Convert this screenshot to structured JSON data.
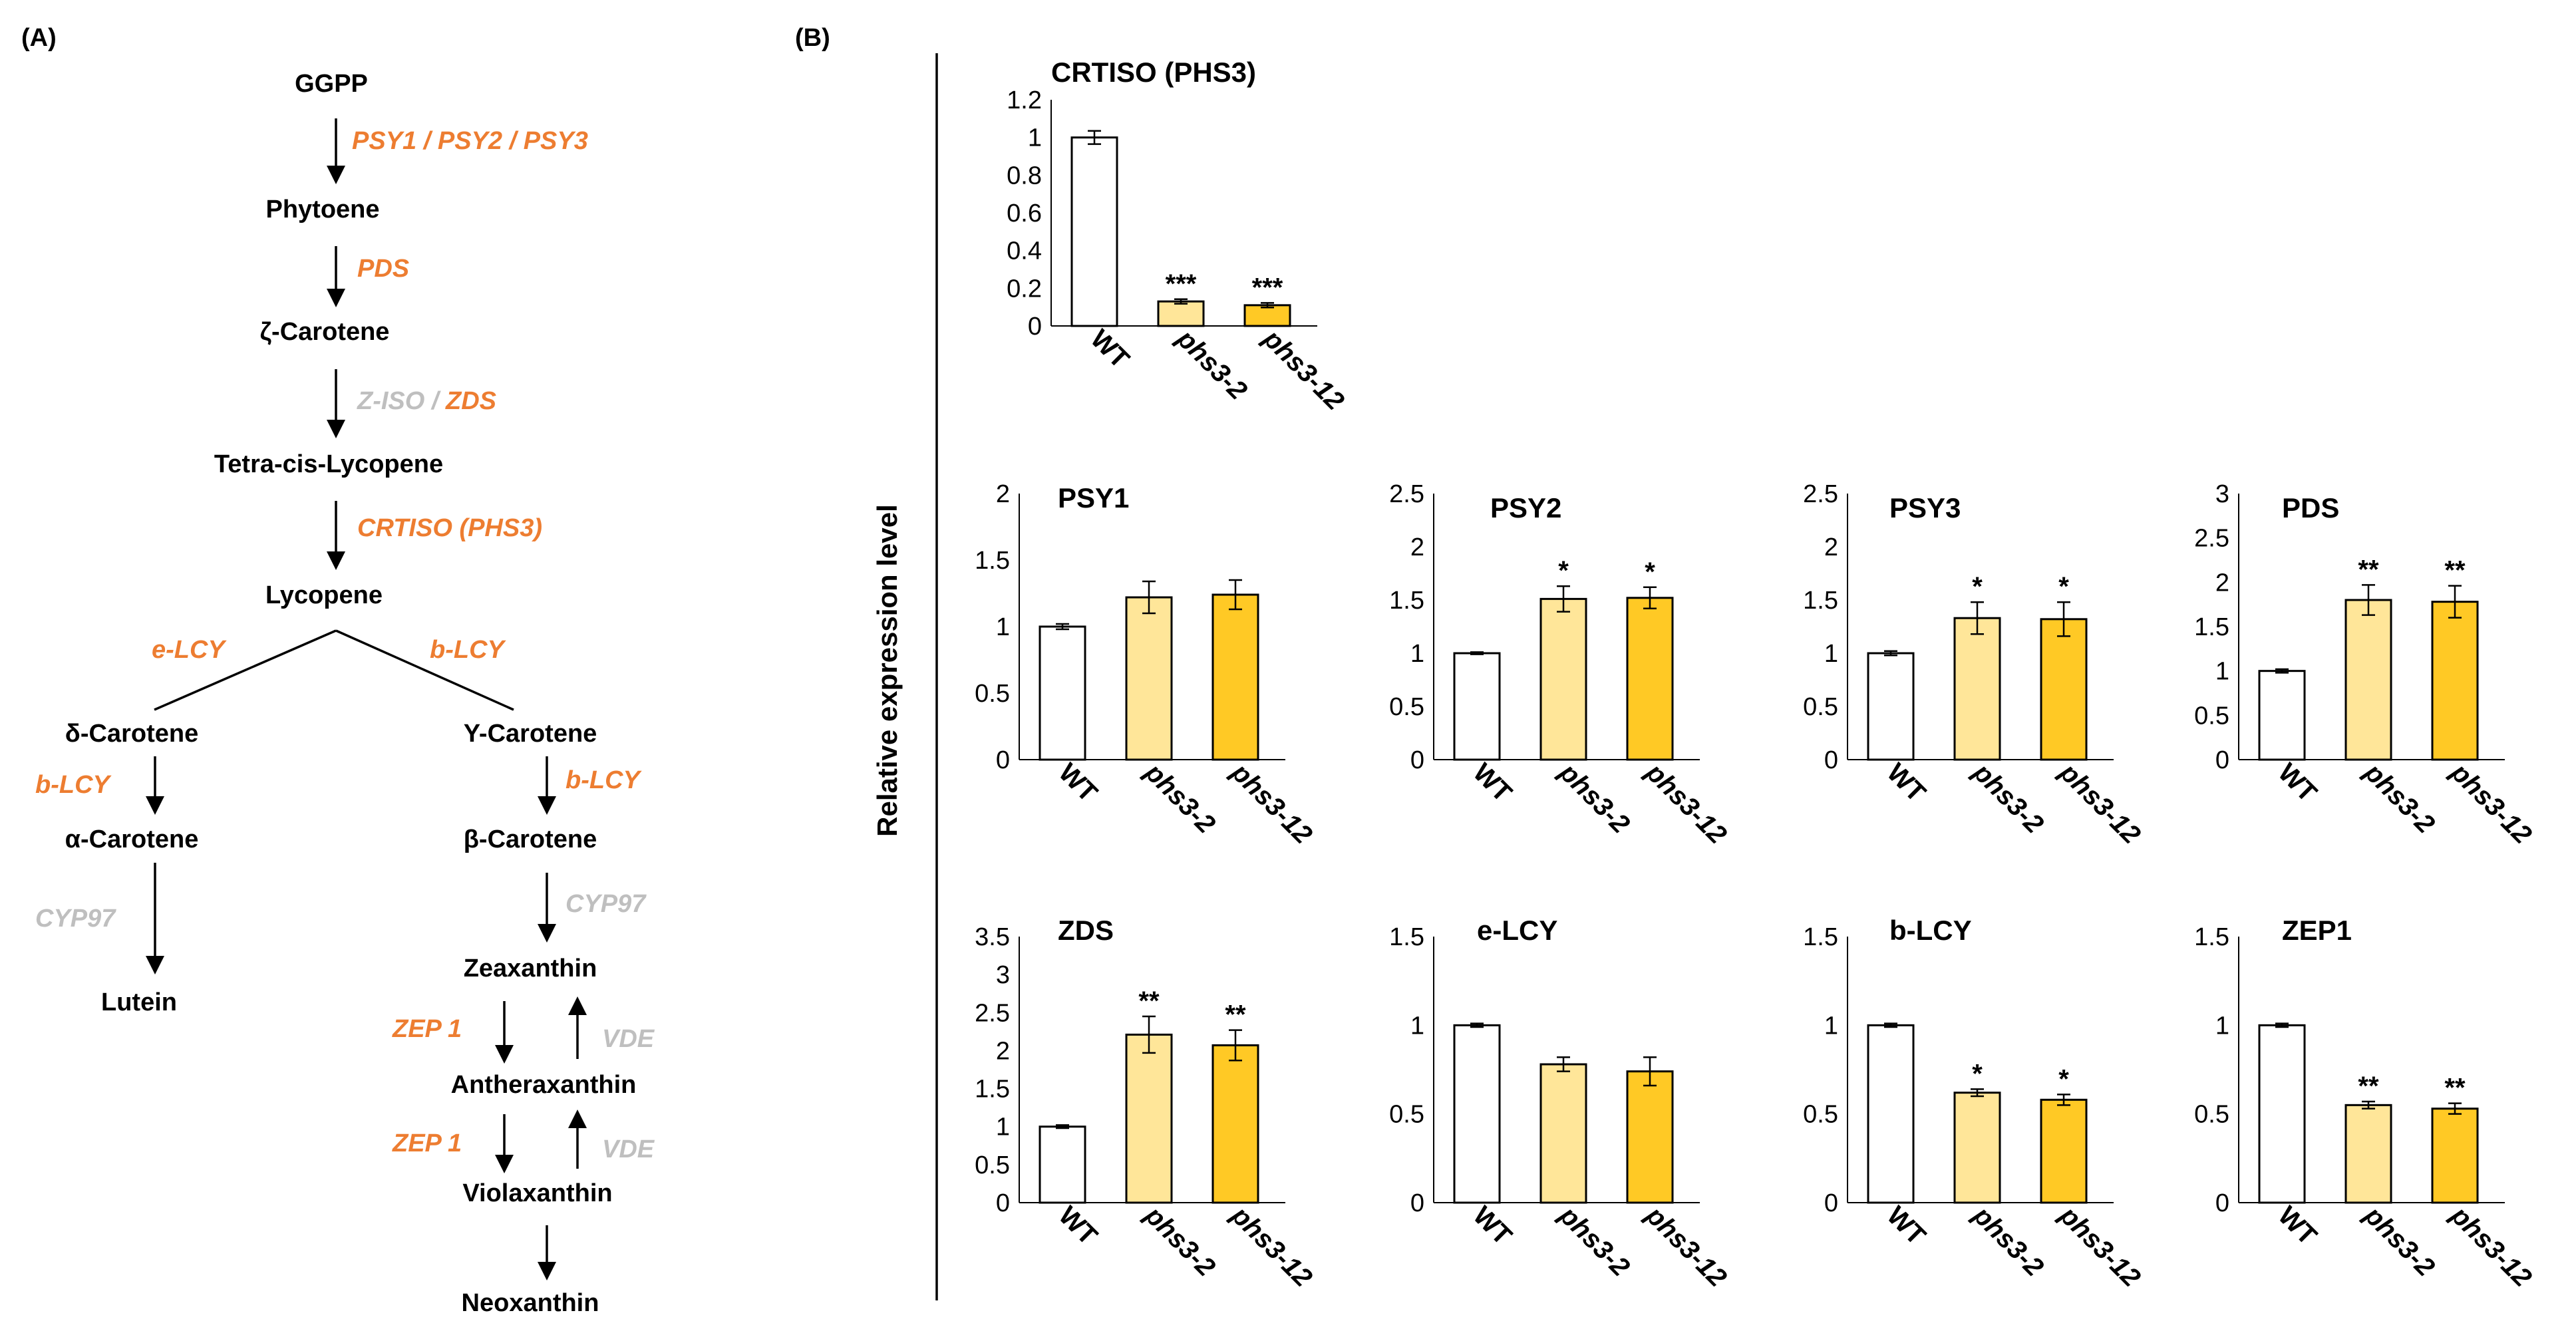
{
  "panel_a": {
    "label": "(A)",
    "metabolites": {
      "ggpp": "GGPP",
      "phytoene": "Phytoene",
      "zeta_carotene": "ζ-Carotene",
      "tetra_cis_lycopene": "Tetra-cis-Lycopene",
      "lycopene": "Lycopene",
      "delta_carotene": "δ-Carotene",
      "gamma_carotene": "Y-Carotene",
      "alpha_carotene": "α-Carotene",
      "beta_carotene": "β-Carotene",
      "lutein": "Lutein",
      "zeaxanthin": "Zeaxanthin",
      "antheraxanthin": "Antheraxanthin",
      "violaxanthin": "Violaxanthin",
      "neoxanthin": "Neoxanthin"
    },
    "enzymes": {
      "psy": "PSY1 / PSY2 / PSY3",
      "pds": "PDS",
      "ziso": "Z-ISO",
      "ziso_sep": " / ",
      "zds": "ZDS",
      "crtiso": "CRTISO (PHS3)",
      "elcy": "e-LCY",
      "blcy_branch": "b-LCY",
      "blcy_left": "b-LCY",
      "blcy_right": "b-LCY",
      "cyp97_left": "CYP97",
      "cyp97_right": "CYP97",
      "zep1_a": "ZEP 1",
      "zep1_b": "ZEP 1",
      "vde_a": "VDE",
      "vde_b": "VDE"
    },
    "colors": {
      "orange": "#ed7d31",
      "grey": "#bfbfbf",
      "black": "#000000"
    }
  },
  "panel_b": {
    "label": "(B)",
    "y_axis_label": "Relative expression level"
  },
  "chart_data": [
    {
      "type": "bar",
      "title": "CRTISO (PHS3)",
      "categories": [
        "WT",
        "phs3-2",
        "phs3-12"
      ],
      "values": [
        1.0,
        0.13,
        0.11
      ],
      "errors": [
        0.035,
        0.012,
        0.012
      ],
      "significance": [
        "",
        "***",
        "***"
      ],
      "yticks": [
        "0",
        "0.2",
        "0.4",
        "0.6",
        "0.8",
        "1",
        "1.2"
      ],
      "ylim": [
        0,
        1.2
      ],
      "ylabel": "Relative expression level"
    },
    {
      "type": "bar",
      "title": "PSY1",
      "categories": [
        "WT",
        "phs3-2",
        "phs3-12"
      ],
      "values": [
        1.0,
        1.22,
        1.24
      ],
      "errors": [
        0.02,
        0.12,
        0.11
      ],
      "significance": [
        "",
        "",
        ""
      ],
      "yticks": [
        "0",
        "0.5",
        "1",
        "1.5",
        "2"
      ],
      "ylim": [
        0,
        2
      ],
      "ylabel": "Relative expression level"
    },
    {
      "type": "bar",
      "title": "PSY2",
      "categories": [
        "WT",
        "phs3-2",
        "phs3-12"
      ],
      "values": [
        1.0,
        1.51,
        1.52
      ],
      "errors": [
        0.01,
        0.12,
        0.1
      ],
      "significance": [
        "",
        "*",
        "*"
      ],
      "yticks": [
        "0",
        "0.5",
        "1",
        "1.5",
        "2",
        "2.5"
      ],
      "ylim": [
        0,
        2.5
      ],
      "ylabel": "Relative expression level"
    },
    {
      "type": "bar",
      "title": "PSY3",
      "categories": [
        "WT",
        "phs3-2",
        "phs3-12"
      ],
      "values": [
        1.0,
        1.33,
        1.32
      ],
      "errors": [
        0.02,
        0.15,
        0.16
      ],
      "significance": [
        "",
        "*",
        "*"
      ],
      "yticks": [
        "0",
        "0.5",
        "1",
        "1.5",
        "2",
        "2.5"
      ],
      "ylim": [
        0,
        2.5
      ],
      "ylabel": "Relative expression level"
    },
    {
      "type": "bar",
      "title": "PDS",
      "categories": [
        "WT",
        "phs3-2",
        "phs3-12"
      ],
      "values": [
        1.0,
        1.8,
        1.78
      ],
      "errors": [
        0.02,
        0.17,
        0.18
      ],
      "significance": [
        "",
        "**",
        "**"
      ],
      "yticks": [
        "0",
        "0.5",
        "1",
        "1.5",
        "2",
        "2.5",
        "3"
      ],
      "ylim": [
        0,
        3
      ],
      "ylabel": "Relative expression level"
    },
    {
      "type": "bar",
      "title": "ZDS",
      "categories": [
        "WT",
        "phs3-2",
        "phs3-12"
      ],
      "values": [
        1.0,
        2.21,
        2.07
      ],
      "errors": [
        0.02,
        0.24,
        0.2
      ],
      "significance": [
        "",
        "**",
        "**"
      ],
      "yticks": [
        "0",
        "0.5",
        "1",
        "1.5",
        "2",
        "2.5",
        "3",
        "3.5"
      ],
      "ylim": [
        0,
        3.5
      ],
      "ylabel": "Relative expression level"
    },
    {
      "type": "bar",
      "title": "e-LCY",
      "categories": [
        "WT",
        "phs3-2",
        "phs3-12"
      ],
      "values": [
        1.0,
        0.78,
        0.74
      ],
      "errors": [
        0.01,
        0.04,
        0.08
      ],
      "significance": [
        "",
        "",
        ""
      ],
      "yticks": [
        "0",
        "0.5",
        "1",
        "1.5"
      ],
      "ylim": [
        0,
        1.5
      ],
      "ylabel": "Relative expression level"
    },
    {
      "type": "bar",
      "title": "b-LCY",
      "categories": [
        "WT",
        "phs3-2",
        "phs3-12"
      ],
      "values": [
        1.0,
        0.62,
        0.58
      ],
      "errors": [
        0.01,
        0.02,
        0.03
      ],
      "significance": [
        "",
        "*",
        "*"
      ],
      "yticks": [
        "0",
        "0.5",
        "1",
        "1.5"
      ],
      "ylim": [
        0,
        1.5
      ],
      "ylabel": "Relative expression level"
    },
    {
      "type": "bar",
      "title": "ZEP1",
      "categories": [
        "WT",
        "phs3-2",
        "phs3-12"
      ],
      "values": [
        1.0,
        0.55,
        0.53
      ],
      "errors": [
        0.01,
        0.02,
        0.03
      ],
      "significance": [
        "",
        "**",
        "**"
      ],
      "yticks": [
        "0",
        "0.5",
        "1",
        "1.5"
      ],
      "ylim": [
        0,
        1.5
      ],
      "ylabel": "Relative expression level"
    }
  ],
  "bar_colors": [
    "#ffffff",
    "#ffe699",
    "#ffc925"
  ],
  "bar_stroke": "#000000"
}
